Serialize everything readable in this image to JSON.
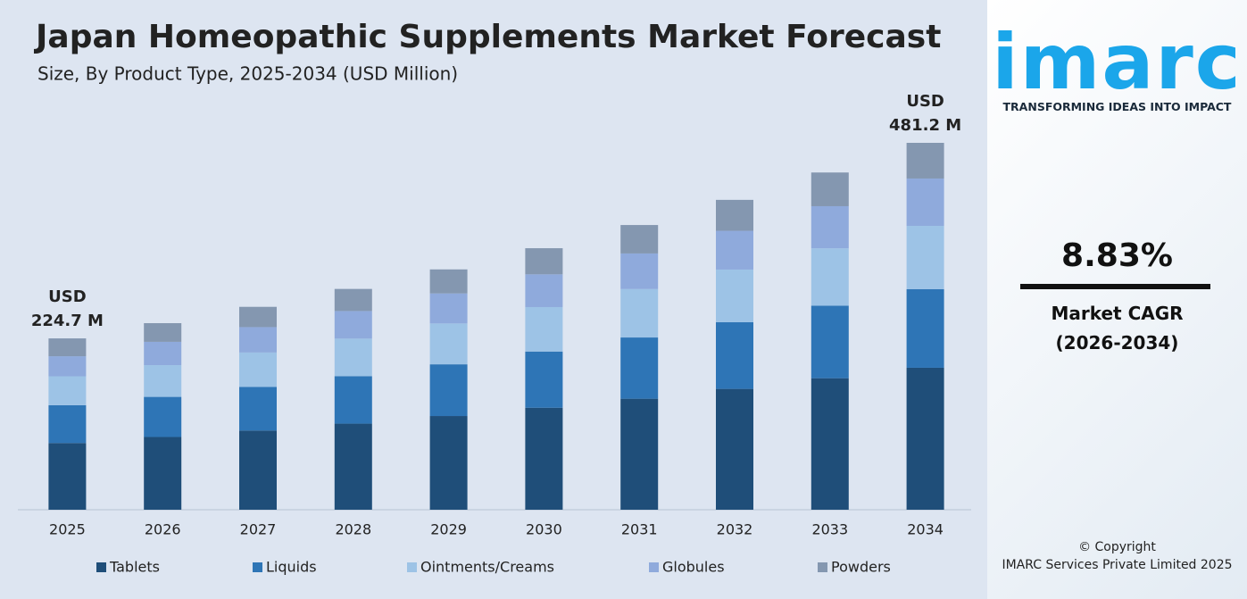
{
  "chart_data": {
    "type": "stacked_bar",
    "title": "Japan Homeopathic Supplements Market Forecast",
    "subtitle": "Size, By Product Type, 2025-2034 (USD Million)",
    "categories": [
      "2025",
      "2026",
      "2027",
      "2028",
      "2029",
      "2030",
      "2031",
      "2032",
      "2033",
      "2034"
    ],
    "series": [
      {
        "name": "Tablets",
        "color": "#1f4e79",
        "values": [
          87.5,
          95.4,
          103.8,
          112.9,
          122.9,
          133.8,
          145.6,
          158.5,
          172.5,
          186.2
        ]
      },
      {
        "name": "Liquids",
        "color": "#2e75b6",
        "values": [
          49.6,
          52.6,
          57.2,
          62.3,
          67.8,
          73.7,
          80.3,
          87.4,
          95.1,
          103.0
        ]
      },
      {
        "name": "Ointments/Creams",
        "color": "#9dc3e6",
        "values": [
          37.9,
          41.6,
          45.2,
          49.2,
          53.6,
          58.3,
          63.5,
          69.1,
          75.2,
          83.1
        ]
      },
      {
        "name": "Globules",
        "color": "#8faadc",
        "values": [
          26.3,
          30.6,
          33.3,
          36.2,
          39.4,
          42.9,
          46.7,
          50.8,
          55.3,
          62.1
        ]
      },
      {
        "name": "Powders",
        "color": "#8497b0",
        "values": [
          23.4,
          24.5,
          26.6,
          29.0,
          31.5,
          34.3,
          37.3,
          40.6,
          44.2,
          46.8
        ]
      }
    ],
    "annotations": [
      {
        "category": "2025",
        "prefix": "USD",
        "value": 224.7,
        "label": "224.7 M"
      },
      {
        "category": "2034",
        "prefix": "USD",
        "value": 481.2,
        "label": "481.2 M"
      }
    ]
  },
  "sidebar": {
    "logo": "imarc",
    "tagline": "TRANSFORMING IDEAS INTO IMPACT",
    "cagr": "8.83%",
    "cagr_label": "Market CAGR",
    "cagr_period": "(2026-2034)",
    "copyright": "© Copyright",
    "company": "IMARC Services Private Limited 2025"
  }
}
